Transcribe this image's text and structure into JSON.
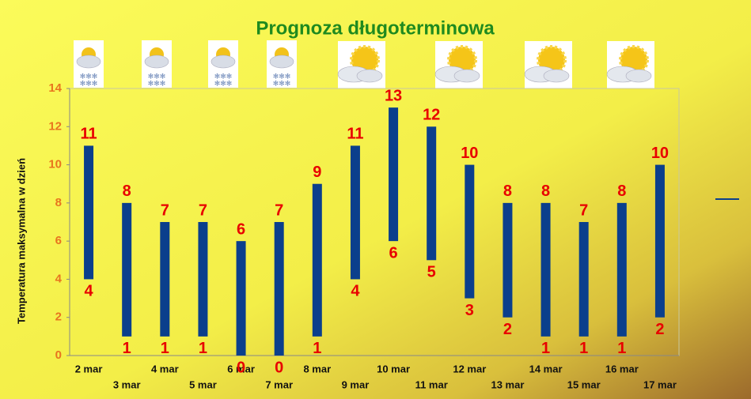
{
  "chart_data": {
    "type": "range_bar",
    "title": "Prognoza długoterminowa",
    "y_label": "Temperatura maksymalna w dzień",
    "categories": [
      "2 mar",
      "3 mar",
      "4 mar",
      "5 mar",
      "6 mar",
      "7 mar",
      "8 mar",
      "9 mar",
      "10 mar",
      "11 mar",
      "12 mar",
      "13 mar",
      "14 mar",
      "15 mar",
      "16 mar",
      "17 mar"
    ],
    "high": [
      11,
      8,
      7,
      7,
      6,
      7,
      9,
      11,
      13,
      12,
      10,
      8,
      8,
      7,
      8,
      10
    ],
    "low": [
      4,
      1,
      1,
      1,
      0,
      0,
      1,
      4,
      6,
      5,
      3,
      2,
      1,
      1,
      1,
      2
    ],
    "color": "#0b3f8c",
    "label_color": "#e80000",
    "ylim": [
      0,
      14
    ],
    "yticks": [
      0,
      2,
      4,
      6,
      8,
      10,
      12,
      14
    ]
  }
}
